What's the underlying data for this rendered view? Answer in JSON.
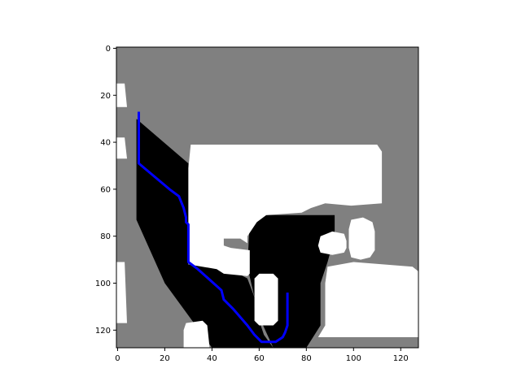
{
  "chart_data": {
    "type": "heatmap",
    "title": "",
    "xlabel": "",
    "ylabel": "",
    "xlim": [
      -0.5,
      127.5
    ],
    "ylim": [
      127.5,
      -0.5
    ],
    "xticks": [
      0,
      20,
      40,
      60,
      80,
      100,
      120
    ],
    "yticks": [
      0,
      20,
      40,
      60,
      80,
      100,
      120
    ],
    "xtick_labels": [
      "0",
      "20",
      "40",
      "60",
      "80",
      "100",
      "120"
    ],
    "ytick_labels": [
      "0",
      "20",
      "40",
      "60",
      "80",
      "100",
      "120"
    ],
    "grid": false,
    "colors": {
      "unknown": "#808080",
      "free": "#ffffff",
      "explored": "#000000",
      "path": "#0000ff"
    },
    "regions": [
      {
        "kind": "unknown",
        "polygon": [
          [
            -0.5,
            -0.5
          ],
          [
            127.5,
            -0.5
          ],
          [
            127.5,
            127.5
          ],
          [
            -0.5,
            127.5
          ]
        ]
      },
      {
        "kind": "explored",
        "polygon": [
          [
            8,
            30
          ],
          [
            30,
            49
          ],
          [
            30,
            92
          ],
          [
            44,
            92
          ],
          [
            55,
            98
          ],
          [
            58,
            106
          ],
          [
            58,
            110
          ],
          [
            62,
            122
          ],
          [
            66,
            127.5
          ],
          [
            40,
            127.5
          ],
          [
            20,
            100
          ],
          [
            8,
            73
          ]
        ]
      },
      {
        "kind": "explored",
        "polygon": [
          [
            55,
            93
          ],
          [
            56,
            74
          ],
          [
            60,
            71
          ],
          [
            92,
            71
          ],
          [
            92,
            80
          ],
          [
            89,
            91
          ],
          [
            86,
            100
          ],
          [
            86,
            118
          ],
          [
            80,
            127.5
          ],
          [
            66,
            127.5
          ],
          [
            58,
            110
          ],
          [
            58,
            106
          ]
        ]
      },
      {
        "kind": "free",
        "polygon": [
          [
            31,
            41
          ],
          [
            110,
            41
          ],
          [
            112,
            44
          ],
          [
            112,
            66
          ],
          [
            99,
            67
          ],
          [
            88,
            66
          ],
          [
            82,
            68
          ],
          [
            78,
            70
          ],
          [
            63,
            71
          ],
          [
            59,
            74
          ],
          [
            55,
            80
          ],
          [
            55,
            83
          ],
          [
            52,
            81
          ],
          [
            45,
            81
          ],
          [
            45,
            84
          ],
          [
            48,
            85
          ],
          [
            56,
            86
          ],
          [
            56,
            96
          ],
          [
            55,
            97
          ],
          [
            45,
            96
          ],
          [
            42,
            94
          ],
          [
            30,
            92
          ],
          [
            30,
            51
          ]
        ]
      },
      {
        "kind": "free",
        "polygon": [
          [
            89,
            93
          ],
          [
            100,
            91
          ],
          [
            125,
            93
          ],
          [
            127.5,
            95
          ],
          [
            127.5,
            123
          ],
          [
            85,
            123
          ],
          [
            88,
            118
          ],
          [
            88,
            100
          ]
        ]
      },
      {
        "kind": "free",
        "polygon": [
          [
            60,
            96
          ],
          [
            66,
            96
          ],
          [
            68,
            98
          ],
          [
            68,
            116
          ],
          [
            66,
            118
          ],
          [
            60,
            118
          ],
          [
            58,
            116
          ],
          [
            58,
            98
          ]
        ]
      },
      {
        "kind": "free",
        "polygon": [
          [
            86,
            80
          ],
          [
            91,
            78
          ],
          [
            96,
            79
          ],
          [
            97,
            82
          ],
          [
            97,
            85
          ],
          [
            96,
            87
          ],
          [
            91,
            88
          ],
          [
            86,
            87
          ],
          [
            85,
            84
          ]
        ]
      },
      {
        "kind": "free",
        "polygon": [
          [
            99,
            73
          ],
          [
            104,
            72
          ],
          [
            108,
            74
          ],
          [
            109,
            78
          ],
          [
            109,
            86
          ],
          [
            107,
            89
          ],
          [
            103,
            90
          ],
          [
            99,
            89
          ],
          [
            98,
            85
          ],
          [
            98,
            77
          ]
        ]
      },
      {
        "kind": "free",
        "polygon": [
          [
            -0.5,
            15
          ],
          [
            3,
            15
          ],
          [
            4,
            25
          ],
          [
            -0.5,
            25
          ]
        ]
      },
      {
        "kind": "free",
        "polygon": [
          [
            -0.5,
            38
          ],
          [
            3,
            38
          ],
          [
            4,
            47
          ],
          [
            -0.5,
            47
          ]
        ]
      },
      {
        "kind": "free",
        "polygon": [
          [
            -0.5,
            91
          ],
          [
            3,
            91
          ],
          [
            4,
            117
          ],
          [
            -0.5,
            117
          ]
        ]
      },
      {
        "kind": "free",
        "polygon": [
          [
            29,
            117
          ],
          [
            36,
            116
          ],
          [
            38,
            118
          ],
          [
            39,
            127.5
          ],
          [
            28,
            127.5
          ],
          [
            28,
            120
          ]
        ]
      }
    ],
    "series": [
      {
        "type": "line",
        "x": [
          9,
          9,
          22,
          26,
          28,
          29,
          29,
          30,
          30,
          34,
          44,
          45,
          49,
          55,
          58,
          61,
          67,
          70,
          71,
          72,
          72,
          72
        ],
        "y": [
          27,
          49,
          60,
          63,
          68,
          72,
          74,
          75,
          91,
          94,
          103,
          107,
          111,
          118,
          122,
          125,
          125,
          123,
          121,
          118,
          110,
          104
        ]
      }
    ]
  }
}
